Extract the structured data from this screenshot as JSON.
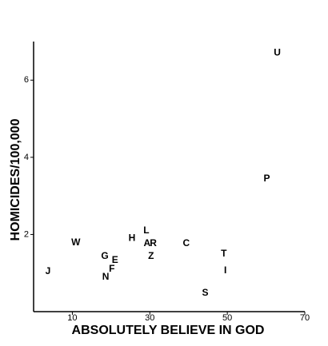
{
  "chart_data": {
    "type": "scatter",
    "xlabel": "ABSOLUTELY BELIEVE IN GOD",
    "ylabel": "HOMICIDES/100,000",
    "labels": [
      "U",
      "P",
      "L",
      "H",
      "A",
      "R",
      "W",
      "C",
      "T",
      "Z",
      "G",
      "E",
      "F",
      "N",
      "I",
      "J",
      "S"
    ],
    "x": [
      62.9,
      60.2,
      29.1,
      25.4,
      29.3,
      30.9,
      10.9,
      39.4,
      49.1,
      30.3,
      18.4,
      21.0,
      20.2,
      18.6,
      49.5,
      3.7,
      44.3
    ],
    "y": [
      6.7,
      3.44,
      2.1,
      1.9,
      1.76,
      1.76,
      1.78,
      1.76,
      1.49,
      1.43,
      1.43,
      1.33,
      1.1,
      0.89,
      1.06,
      1.04,
      0.48
    ],
    "color": "#000000",
    "xlim": [
      0,
      70
    ],
    "ylim": [
      0,
      7
    ],
    "xticks": [
      10,
      30,
      50,
      70
    ],
    "yticks": [
      2,
      4,
      6
    ]
  }
}
